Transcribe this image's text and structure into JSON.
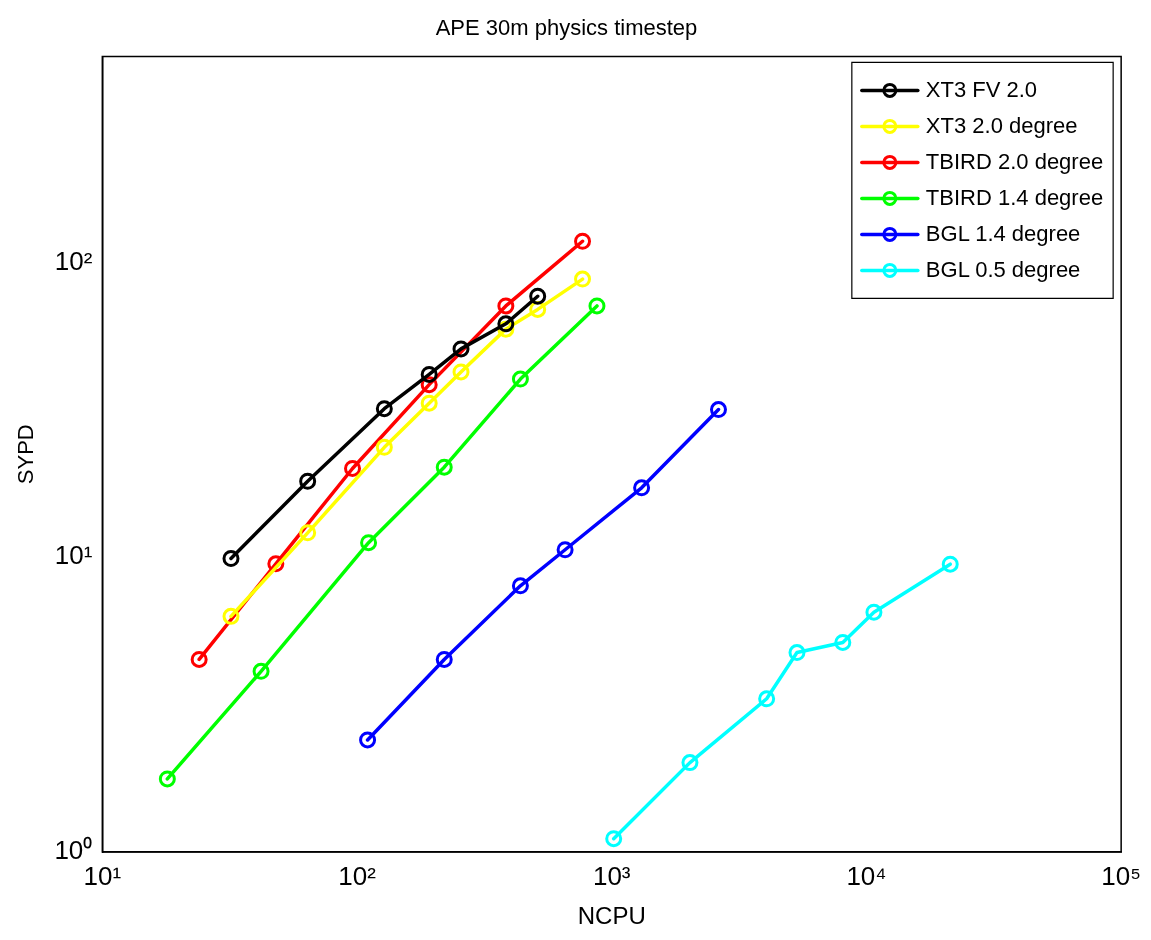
{
  "chart_data": {
    "type": "line",
    "title": "APE 30m physics timestep",
    "xlabel": "NCPU",
    "ylabel": "SYPD",
    "log": "xy",
    "grid": false,
    "legend": "top right",
    "marker": "circle",
    "line_style": "solid",
    "xlim": [
      10,
      100000
    ],
    "ylim": [
      1,
      500
    ],
    "xticks": [
      {
        "value": 10,
        "label": "10¹"
      },
      {
        "value": 100,
        "label": "10²"
      },
      {
        "value": 1000,
        "label": "10³"
      },
      {
        "value": 10000,
        "label": "10⁴"
      },
      {
        "value": 100000,
        "label": "10⁵"
      }
    ],
    "yticks": [
      {
        "value": 1,
        "label": "10⁰"
      },
      {
        "value": 10,
        "label": "10¹"
      },
      {
        "value": 100,
        "label": "10²"
      }
    ],
    "series": [
      {
        "name": "XT3 FV 2.0",
        "color": "#000000",
        "x": [
          32,
          64,
          128,
          192,
          256,
          384,
          512
        ],
        "values": [
          9.9,
          18.1,
          31.9,
          41.7,
          50.9,
          61.9,
          76.8
        ]
      },
      {
        "name": "XT3 2.0 degree",
        "color": "#ffff00",
        "x": [
          32,
          64,
          128,
          192,
          256,
          384,
          512,
          768
        ],
        "values": [
          6.3,
          12.1,
          23.6,
          33.3,
          42.5,
          59.4,
          69.3,
          87.8
        ]
      },
      {
        "name": "TBIRD 2.0 degree",
        "color": "#ff0000",
        "x": [
          24,
          48,
          96,
          192,
          384,
          768
        ],
        "values": [
          4.5,
          9.5,
          20.0,
          38.5,
          71.2,
          118
        ]
      },
      {
        "name": "TBIRD 1.4 degree",
        "color": "#00ff00",
        "x": [
          18,
          42,
          111,
          220,
          438,
          875
        ],
        "values": [
          1.77,
          4.1,
          11.2,
          20.2,
          40.2,
          71.2
        ]
      },
      {
        "name": "BGL 1.4 degree",
        "color": "#0000ff",
        "x": [
          110,
          220,
          438,
          656,
          1310,
          2625
        ],
        "values": [
          2.4,
          4.5,
          8.0,
          10.6,
          17.2,
          31.7
        ]
      },
      {
        "name": "BGL 0.5 degree",
        "color": "#00ffff",
        "x": [
          1018,
          2028,
          4057,
          5337,
          8076,
          10700,
          21330
        ],
        "values": [
          1.11,
          2.01,
          3.31,
          4.75,
          5.14,
          6.51,
          9.47
        ]
      }
    ]
  }
}
